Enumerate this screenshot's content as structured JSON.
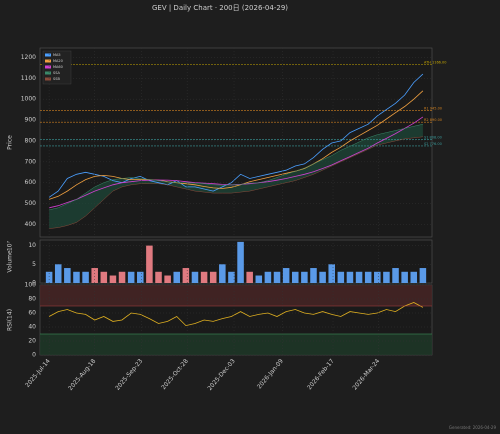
{
  "chart_data": [
    {
      "type": "line",
      "title": "GEV  |  Daily Chart · 200日  (2026-04-29)",
      "ylabel": "Price",
      "x": [
        "2025-07-14",
        "2025-07-21",
        "2025-07-28",
        "2025-08-04",
        "2025-08-11",
        "2025-08-18",
        "2025-08-25",
        "2025-09-01",
        "2025-09-08",
        "2025-09-15",
        "2025-09-22",
        "2025-09-29",
        "2025-10-06",
        "2025-10-13",
        "2025-10-20",
        "2025-10-27",
        "2025-11-03",
        "2025-11-10",
        "2025-11-17",
        "2025-11-24",
        "2025-12-01",
        "2025-12-08",
        "2025-12-15",
        "2025-12-22",
        "2025-12-29",
        "2026-01-05",
        "2026-01-12",
        "2026-01-19",
        "2026-01-26",
        "2026-02-02",
        "2026-02-09",
        "2026-02-16",
        "2026-02-23",
        "2026-03-02",
        "2026-03-09",
        "2026-03-16",
        "2026-03-23",
        "2026-03-30",
        "2026-04-06",
        "2026-04-13",
        "2026-04-20",
        "2026-04-27"
      ],
      "series": [
        {
          "name": "MA5",
          "color": "#4a9fff",
          "values": [
            530,
            560,
            620,
            640,
            650,
            640,
            630,
            610,
            600,
            620,
            630,
            610,
            600,
            590,
            610,
            580,
            580,
            570,
            560,
            580,
            600,
            640,
            620,
            630,
            640,
            650,
            660,
            680,
            690,
            720,
            760,
            790,
            800,
            840,
            860,
            880,
            920,
            950,
            980,
            1020,
            1080,
            1120
          ]
        },
        {
          "name": "MA20",
          "color": "#f0a040",
          "values": [
            520,
            535,
            560,
            590,
            615,
            630,
            635,
            630,
            620,
            615,
            615,
            615,
            612,
            605,
            600,
            595,
            590,
            582,
            575,
            572,
            578,
            590,
            605,
            615,
            625,
            635,
            645,
            655,
            668,
            690,
            715,
            745,
            770,
            800,
            825,
            850,
            875,
            905,
            935,
            965,
            1000,
            1040
          ]
        },
        {
          "name": "MA60",
          "color": "#d040d0",
          "values": [
            480,
            490,
            505,
            520,
            540,
            560,
            575,
            590,
            600,
            605,
            610,
            612,
            613,
            612,
            610,
            605,
            600,
            598,
            595,
            592,
            590,
            592,
            595,
            600,
            605,
            612,
            620,
            630,
            640,
            652,
            668,
            685,
            705,
            725,
            745,
            765,
            790,
            812,
            835,
            860,
            885,
            915
          ]
        },
        {
          "name": "SSA",
          "color": "#3a8a6a",
          "values": [
            470,
            480,
            500,
            520,
            550,
            580,
            600,
            615,
            620,
            625,
            620,
            615,
            610,
            605,
            600,
            600,
            598,
            595,
            590,
            588,
            590,
            592,
            598,
            600,
            610,
            625,
            640,
            655,
            670,
            690,
            710,
            730,
            755,
            775,
            795,
            815,
            830,
            840,
            850,
            860,
            870,
            880
          ]
        },
        {
          "name": "SSB",
          "color": "#8a4a3a",
          "values": [
            380,
            385,
            395,
            410,
            440,
            480,
            520,
            560,
            580,
            590,
            595,
            595,
            595,
            590,
            580,
            570,
            560,
            555,
            550,
            550,
            550,
            555,
            560,
            570,
            580,
            590,
            600,
            610,
            625,
            640,
            660,
            680,
            700,
            720,
            740,
            760,
            780,
            790,
            800,
            810,
            815,
            820
          ]
        }
      ],
      "cloud_color": "#1e4a3a",
      "levels": [
        {
          "value": 1166,
          "label": "ATH 1166.00",
          "color": "#c8a800"
        },
        {
          "value": 945,
          "label": "R1 945.00",
          "color": "#d08020"
        },
        {
          "value": 890,
          "label": "R2 890.00",
          "color": "#d08020"
        },
        {
          "value": 808,
          "label": "S1 808.00",
          "color": "#3a9a9a"
        },
        {
          "value": 776,
          "label": "S2 776.00",
          "color": "#3a9a9a"
        }
      ],
      "ylim": [
        340,
        1245
      ],
      "yticks": [
        400,
        500,
        600,
        700,
        800,
        900,
        1000,
        1100,
        1200
      ],
      "grid": true
    },
    {
      "type": "bar",
      "ylabel": "Volume",
      "unit": "10⁷",
      "values": [
        3,
        5,
        4,
        3,
        3,
        4,
        3,
        2,
        3,
        3,
        3,
        10,
        3,
        2,
        3,
        4,
        3,
        3,
        3,
        5,
        3,
        11,
        3,
        2,
        3,
        3,
        4,
        3,
        3,
        4,
        3,
        5,
        3,
        3,
        3,
        3,
        3,
        3,
        4,
        3,
        3,
        4
      ],
      "up_color": "#5a9ae8",
      "down_color": "#e07a80",
      "ylim": [
        0,
        11.5
      ],
      "yticks": [
        0,
        5,
        10
      ],
      "grid": true
    },
    {
      "type": "line",
      "ylabel": "RSI(14)",
      "series": [
        {
          "name": "RSI",
          "color": "#e0b020",
          "values": [
            55,
            62,
            65,
            60,
            58,
            50,
            55,
            48,
            50,
            60,
            58,
            52,
            45,
            48,
            55,
            42,
            45,
            50,
            48,
            52,
            55,
            62,
            55,
            58,
            60,
            55,
            62,
            65,
            60,
            58,
            62,
            58,
            55,
            62,
            60,
            58,
            60,
            65,
            62,
            70,
            75,
            68
          ]
        }
      ],
      "zones": [
        {
          "from": 70,
          "to": 100,
          "color": "#4a2626"
        },
        {
          "from": 0,
          "to": 30,
          "color": "#1e3a28"
        }
      ],
      "ylim": [
        0,
        100
      ],
      "yticks": [
        0,
        20,
        40,
        60,
        80,
        100
      ],
      "grid": true,
      "xlim": [
        "2025-07-07",
        "2026-05-04"
      ],
      "xticks": [
        {
          "value": "2025-07-14",
          "label": "2025-Jul-14"
        },
        {
          "value": "2025-08-18",
          "label": "2025-Aug-18"
        },
        {
          "value": "2025-09-23",
          "label": "2025-Sep-23"
        },
        {
          "value": "2025-10-28",
          "label": "2025-Oct-28"
        },
        {
          "value": "2025-12-03",
          "label": "2025-Dec-03"
        },
        {
          "value": "2026-01-09",
          "label": "2026-Jan-09"
        },
        {
          "value": "2026-02-17",
          "label": "2026-Feb-17"
        },
        {
          "value": "2026-03-24",
          "label": "2026-Mar-24"
        }
      ]
    }
  ],
  "footer": "Generated: 2026-04-29"
}
